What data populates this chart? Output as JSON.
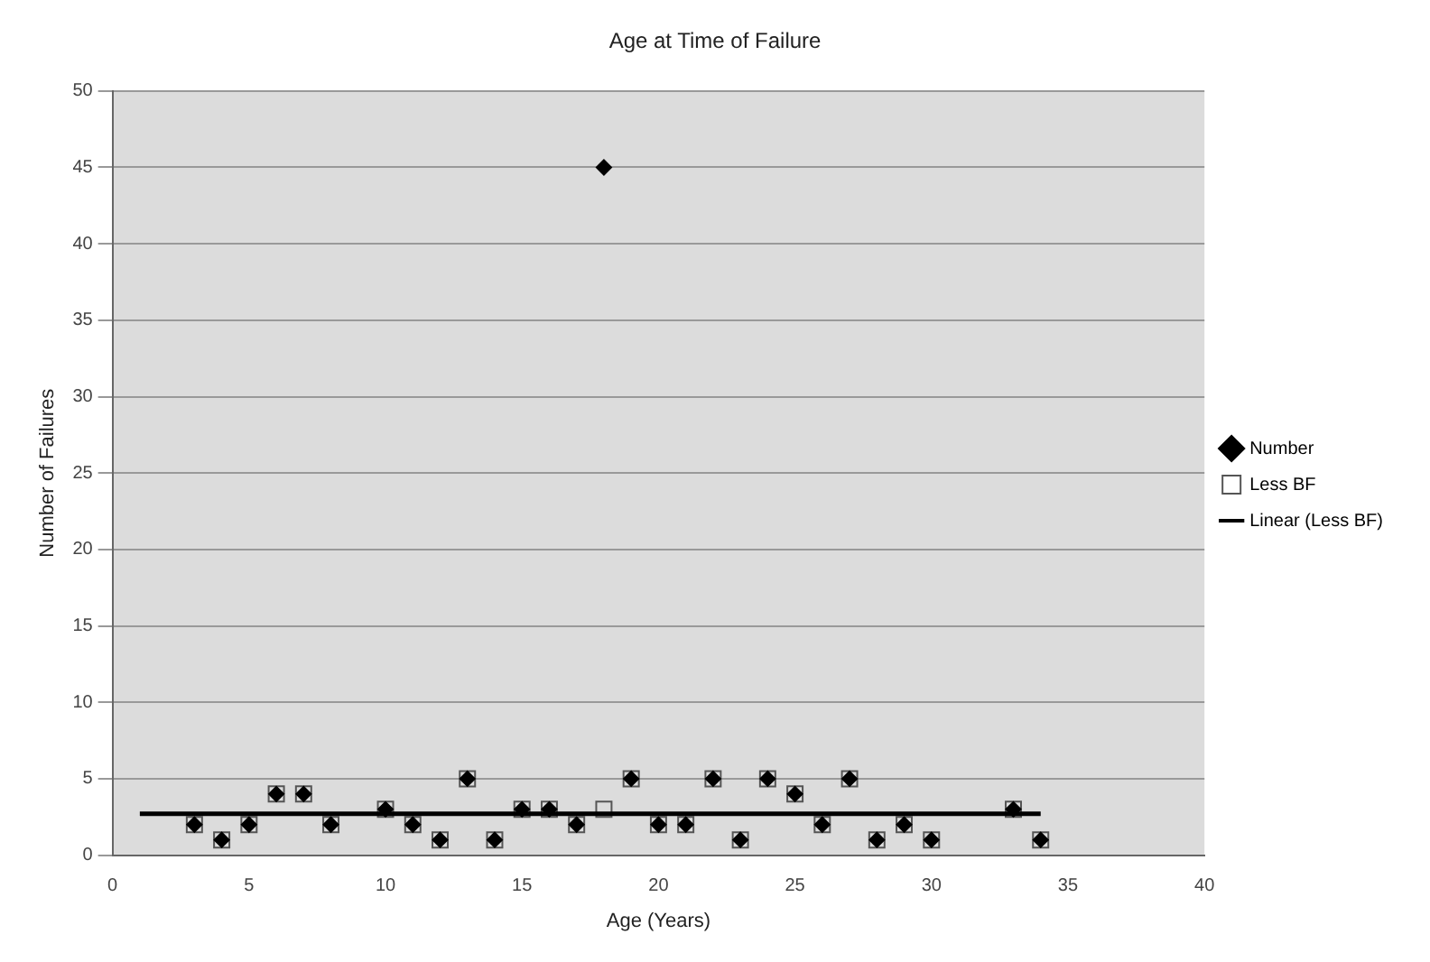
{
  "chart_data": {
    "type": "scatter",
    "title": "Age at Time of Failure",
    "xlabel": "Age (Years)",
    "ylabel": "Number of Failures",
    "xlim": [
      0,
      40
    ],
    "xticks": [
      0,
      5,
      10,
      15,
      20,
      25,
      30,
      35,
      40
    ],
    "ylim": [
      0,
      50
    ],
    "yticks": [
      0,
      5,
      10,
      15,
      20,
      25,
      30,
      35,
      40,
      45,
      50
    ],
    "grid": "y",
    "legend": "right",
    "series": [
      {
        "name": "Number",
        "type": "scatter",
        "marker": "diamond",
        "color": "#000000",
        "x": [
          3,
          4,
          5,
          6,
          7,
          8,
          10,
          11,
          12,
          13,
          14,
          15,
          16,
          17,
          18,
          19,
          20,
          21,
          22,
          23,
          24,
          25,
          26,
          27,
          28,
          29,
          30,
          33,
          34
        ],
        "values": [
          2,
          1,
          2,
          4,
          4,
          2,
          3,
          2,
          1,
          5,
          1,
          3,
          3,
          2,
          45,
          5,
          2,
          2,
          5,
          1,
          5,
          4,
          2,
          5,
          1,
          2,
          1,
          3,
          1
        ]
      },
      {
        "name": "Less BF",
        "type": "scatter",
        "marker": "square",
        "color": "#555555",
        "x": [
          3,
          4,
          5,
          6,
          7,
          8,
          10,
          11,
          12,
          13,
          14,
          15,
          16,
          17,
          18,
          19,
          20,
          21,
          22,
          23,
          24,
          25,
          26,
          27,
          28,
          29,
          30,
          33,
          34
        ],
        "values": [
          2,
          1,
          2,
          4,
          4,
          2,
          3,
          2,
          1,
          5,
          1,
          3,
          3,
          2,
          3,
          5,
          2,
          2,
          5,
          1,
          5,
          4,
          2,
          5,
          1,
          2,
          1,
          3,
          1
        ]
      },
      {
        "name": "Linear (Less BF)",
        "type": "line",
        "marker": "none",
        "line_style": "solid",
        "color": "#000000",
        "x": [
          1,
          34
        ],
        "values": [
          2.7,
          2.7
        ]
      }
    ]
  }
}
